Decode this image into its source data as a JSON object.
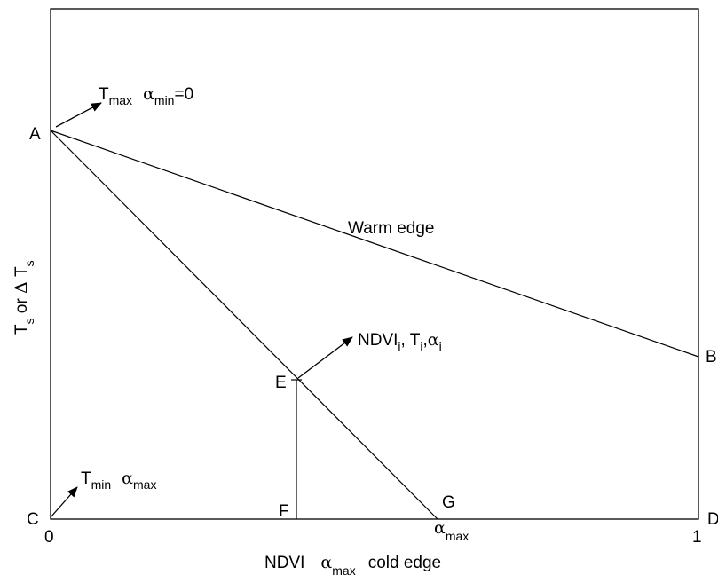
{
  "diagram": {
    "points": {
      "A": "A",
      "B": "B",
      "C": "C",
      "D": "D",
      "E": "E",
      "F": "F",
      "G": "G"
    },
    "x_axis": {
      "tick_start": "0",
      "tick_end": "1",
      "tick_alpha": "α",
      "tick_alpha_sub": "max",
      "label_ndvi": "NDVI",
      "label_alpha": "α",
      "label_alpha_sub": "max",
      "label_edge": "cold edge"
    },
    "y_axis": {
      "T1": "T",
      "sub1": "s",
      "or": " or ",
      "delta": "Δ",
      "T2": " T",
      "sub2": "s"
    },
    "warm_edge": "Warm edge",
    "annot_top": {
      "T": "T",
      "T_sub": "max",
      "alpha": "α",
      "alpha_sub": "min",
      "eq": "=0"
    },
    "annot_bottom": {
      "T": "T",
      "T_sub": "min",
      "alpha": "α",
      "alpha_sub": "max"
    },
    "annot_point": {
      "ndvi": "NDVI",
      "ndvi_sub": "i",
      "sep1": ", ",
      "T": "T",
      "T_sub": "i",
      "sep2": ",",
      "alpha": "α",
      "alpha_sub": "i"
    }
  }
}
